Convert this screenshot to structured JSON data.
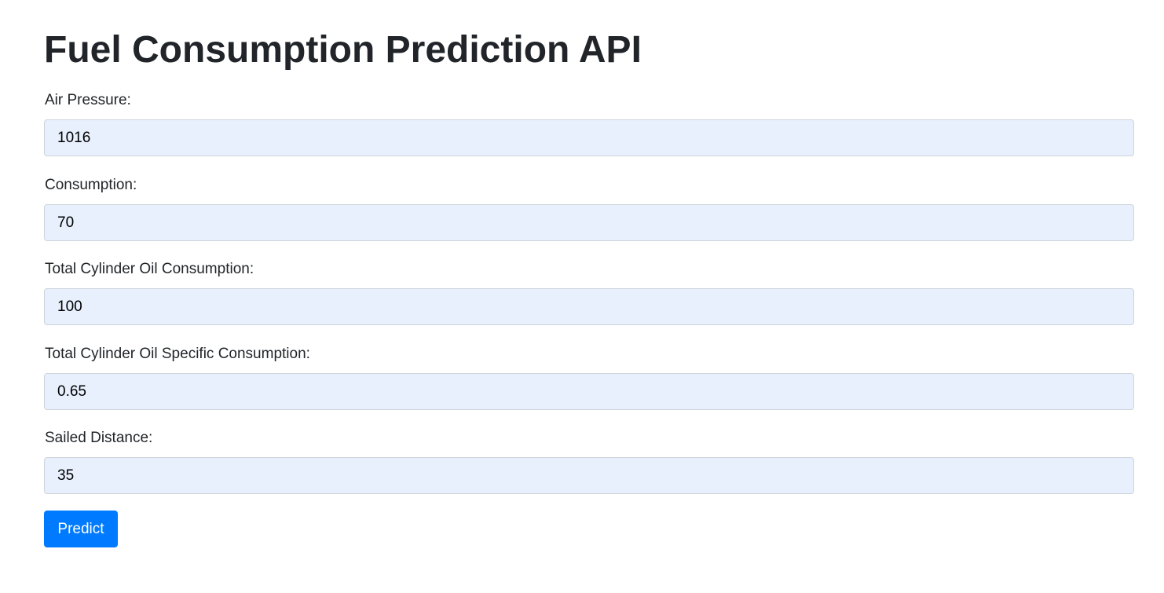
{
  "page": {
    "title": "Fuel Consumption Prediction API"
  },
  "form": {
    "fields": [
      {
        "label": "Air Pressure:",
        "value": "1016"
      },
      {
        "label": "Consumption:",
        "value": "70"
      },
      {
        "label": "Total Cylinder Oil Consumption:",
        "value": "100"
      },
      {
        "label": "Total Cylinder Oil Specific Consumption:",
        "value": "0.65"
      },
      {
        "label": "Sailed Distance:",
        "value": "35"
      }
    ],
    "submit_label": "Predict"
  },
  "colors": {
    "primary": "#007bff",
    "input_background": "#e8f0fe",
    "text": "#212529"
  }
}
